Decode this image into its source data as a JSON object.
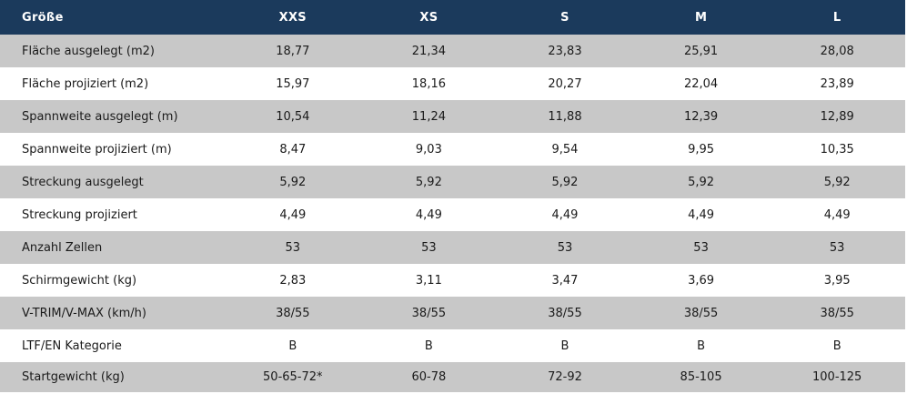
{
  "table": {
    "header": {
      "label": "Größe",
      "sizes": [
        "XXS",
        "XS",
        "S",
        "M",
        "L"
      ]
    },
    "rows": [
      {
        "label": "Fläche ausgelegt (m2)",
        "values": [
          "18,77",
          "21,34",
          "23,83",
          "25,91",
          "28,08"
        ]
      },
      {
        "label": "Fläche projiziert (m2)",
        "values": [
          "15,97",
          "18,16",
          "20,27",
          "22,04",
          "23,89"
        ]
      },
      {
        "label": "Spannweite ausgelegt (m)",
        "values": [
          "10,54",
          "11,24",
          "11,88",
          "12,39",
          "12,89"
        ]
      },
      {
        "label": "Spannweite projiziert (m)",
        "values": [
          "8,47",
          "9,03",
          "9,54",
          "9,95",
          "10,35"
        ]
      },
      {
        "label": "Streckung ausgelegt",
        "values": [
          "5,92",
          "5,92",
          "5,92",
          "5,92",
          "5,92"
        ]
      },
      {
        "label": "Streckung projiziert",
        "values": [
          "4,49",
          "4,49",
          "4,49",
          "4,49",
          "4,49"
        ]
      },
      {
        "label": "Anzahl Zellen",
        "values": [
          "53",
          "53",
          "53",
          "53",
          "53"
        ]
      },
      {
        "label": "Schirmgewicht (kg)",
        "values": [
          "2,83",
          "3,11",
          "3,47",
          "3,69",
          "3,95"
        ]
      },
      {
        "label": "V-TRIM/V-MAX (km/h)",
        "values": [
          "38/55",
          "38/55",
          "38/55",
          "38/55",
          "38/55"
        ]
      },
      {
        "label": "LTF/EN Kategorie",
        "values": [
          "B",
          "B",
          "B",
          "B",
          "B"
        ]
      },
      {
        "label": "Startgewicht (kg)",
        "values": [
          "50-65-72*",
          "60-78",
          "72-92",
          "85-105",
          "100-125"
        ]
      }
    ]
  },
  "colors": {
    "header_bg": "#1b3a5c",
    "shaded_row_bg": "#c8c8c8",
    "plain_row_bg": "#ffffff"
  }
}
